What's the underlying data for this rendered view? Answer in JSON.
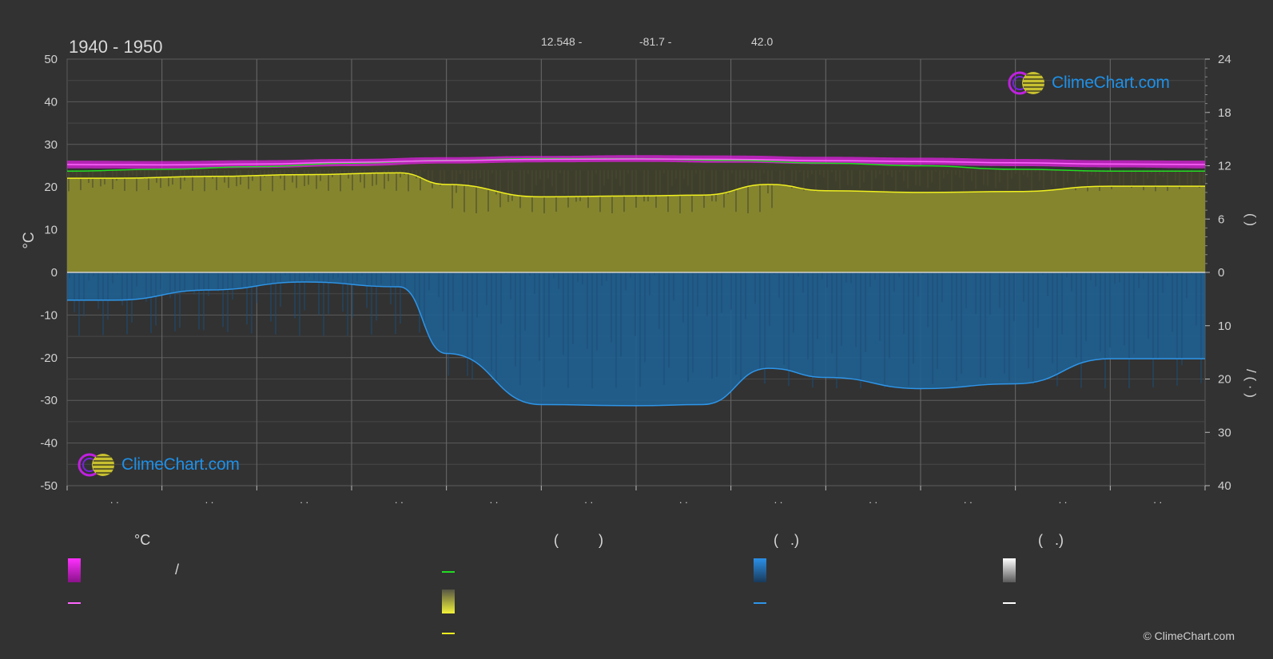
{
  "header": {
    "period": "1940 - 1950",
    "lat": "12.548 -",
    "lon": "-81.7 -",
    "elevation": "42.0"
  },
  "logo": {
    "text": "ClimeChart.com"
  },
  "copyright": "© ClimeChart.com",
  "legend": {
    "col1_header": "°C",
    "col2_header": "(          )",
    "col3_header": "(   .)",
    "col4_header": "(   .)",
    "col1_slash": "/"
  },
  "colors": {
    "background": "#323232",
    "temp_band": "#e020e0",
    "temp_mean": "#ff66ff",
    "daylight": "#22dd22",
    "sunshine_fill": "#9a9a30",
    "sunshine_line": "#f0f020",
    "precip_fill": "#1f5f90",
    "precip_line": "#2e95e8",
    "snow_line": "#ffffff"
  },
  "chart_data": {
    "type": "area",
    "title": "1940 - 1950",
    "x_tick_labels": [
      ". .",
      ". .",
      ". .",
      ". .",
      ". .",
      ". .",
      ". .",
      ". .",
      ". .",
      ". .",
      ". .",
      ". ."
    ],
    "y_left": {
      "label": "°C",
      "range": [
        -50,
        50
      ],
      "ticks": [
        50,
        40,
        30,
        20,
        10,
        0,
        -10,
        -20,
        -30,
        -40,
        -50
      ]
    },
    "y_right_top": {
      "label": "(   )",
      "range": [
        0,
        24
      ],
      "ticks": [
        24,
        18,
        12,
        6,
        0
      ]
    },
    "y_right_bottom": {
      "label": "/ (  ·  )",
      "range": [
        0,
        40
      ],
      "ticks": [
        0,
        10,
        20,
        30,
        40
      ]
    },
    "grid": true,
    "series": [
      {
        "key": "temp_max_band",
        "axis": "celsius",
        "x": [
          0,
          1,
          2,
          3,
          4,
          5,
          6,
          7,
          8,
          9,
          10,
          11,
          12
        ],
        "values": [
          26.2,
          26.1,
          26.3,
          26.6,
          27.0,
          27.3,
          27.5,
          27.4,
          27.1,
          26.9,
          26.6,
          26.3,
          26.2
        ]
      },
      {
        "key": "temp_min_band",
        "axis": "celsius",
        "x": [
          0,
          1,
          2,
          3,
          4,
          5,
          6,
          7,
          8,
          9,
          10,
          11,
          12
        ],
        "values": [
          24.4,
          24.3,
          24.5,
          24.9,
          25.5,
          25.8,
          25.9,
          25.7,
          25.4,
          25.2,
          24.9,
          24.6,
          24.4
        ]
      },
      {
        "key": "temp_mean",
        "axis": "celsius",
        "x": [
          0,
          1,
          2,
          3,
          4,
          5,
          6,
          7,
          8,
          9,
          10,
          11,
          12
        ],
        "values": [
          25.3,
          25.2,
          25.4,
          25.8,
          26.2,
          26.5,
          26.6,
          26.5,
          26.2,
          26.0,
          25.7,
          25.4,
          25.3
        ]
      },
      {
        "key": "daylight_hours",
        "axis": "hours",
        "x": [
          0,
          1,
          2,
          3,
          4,
          5,
          6,
          7,
          8,
          9,
          10,
          11,
          12
        ],
        "values": [
          11.4,
          11.6,
          11.9,
          12.3,
          12.6,
          12.8,
          12.8,
          12.6,
          12.3,
          12.0,
          11.6,
          11.4,
          11.4
        ]
      },
      {
        "key": "sunshine_hours",
        "axis": "hours",
        "x": [
          0,
          0.5,
          1.5,
          2.5,
          3.5,
          4.0,
          5.0,
          6.0,
          6.7,
          7.4,
          8.0,
          9.0,
          10.0,
          11.0,
          12.0
        ],
        "values": [
          10.6,
          10.6,
          10.8,
          11.0,
          11.2,
          9.9,
          8.5,
          8.6,
          8.7,
          9.9,
          9.2,
          9.0,
          9.1,
          9.7,
          9.7
        ]
      },
      {
        "key": "precipitation",
        "axis": "mm",
        "x": [
          0,
          0.5,
          1.5,
          2.5,
          3.5,
          4.0,
          5.0,
          6.0,
          6.7,
          7.4,
          8.0,
          9.0,
          10.0,
          11.0,
          12.0
        ],
        "values": [
          5.2,
          5.2,
          3.3,
          1.8,
          2.7,
          15.2,
          24.8,
          25.0,
          24.8,
          18.0,
          19.7,
          21.8,
          20.9,
          16.2,
          16.2
        ]
      }
    ]
  }
}
